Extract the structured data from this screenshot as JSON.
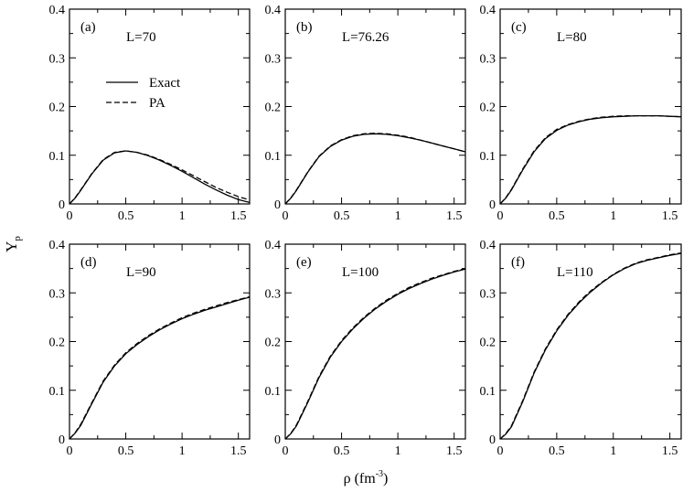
{
  "figure": {
    "xlabel": "ρ (fm",
    "xlabel_sup": "-3",
    "xlabel_close": ")",
    "ylabel": "Y",
    "ylabel_sub": "p"
  },
  "chart_data": [
    {
      "type": "line",
      "panel": "(a)",
      "annotation": "L=70",
      "xlim": [
        0,
        1.6
      ],
      "ylim": [
        0,
        0.4
      ],
      "xticks": [
        "0",
        "0.5",
        "1",
        "1.5"
      ],
      "xtick_values": [
        0,
        0.5,
        1,
        1.5
      ],
      "yticks": [
        "0",
        "0.1",
        "0.2",
        "0.3",
        "0.4"
      ],
      "ytick_values": [
        0,
        0.1,
        0.2,
        0.3,
        0.4
      ],
      "legend": {
        "placement": "upper-left",
        "entries": [
          {
            "name": "Exact",
            "style": "solid"
          },
          {
            "name": "PA",
            "style": "dashed"
          }
        ]
      },
      "series": [
        {
          "name": "Exact",
          "style": "solid",
          "x": [
            0,
            0.05,
            0.1,
            0.2,
            0.3,
            0.4,
            0.5,
            0.6,
            0.7,
            0.8,
            0.9,
            1.0,
            1.1,
            1.2,
            1.3,
            1.4,
            1.5,
            1.6
          ],
          "y": [
            0,
            0.012,
            0.028,
            0.062,
            0.09,
            0.105,
            0.109,
            0.106,
            0.099,
            0.09,
            0.079,
            0.067,
            0.054,
            0.041,
            0.029,
            0.018,
            0.009,
            0.003
          ]
        },
        {
          "name": "PA",
          "style": "dashed",
          "x": [
            0,
            0.05,
            0.1,
            0.2,
            0.3,
            0.4,
            0.5,
            0.6,
            0.7,
            0.8,
            0.9,
            1.0,
            1.1,
            1.2,
            1.3,
            1.4,
            1.5,
            1.6
          ],
          "y": [
            0,
            0.013,
            0.029,
            0.063,
            0.091,
            0.106,
            0.109,
            0.106,
            0.1,
            0.091,
            0.081,
            0.07,
            0.058,
            0.046,
            0.034,
            0.024,
            0.015,
            0.008
          ]
        }
      ]
    },
    {
      "type": "line",
      "panel": "(b)",
      "annotation": "L=76.26",
      "xlim": [
        0,
        1.6
      ],
      "ylim": [
        0,
        0.4
      ],
      "xticks": [
        "0",
        "0.5",
        "1",
        "1.5"
      ],
      "xtick_values": [
        0,
        0.5,
        1,
        1.5
      ],
      "yticks": [
        "0",
        "0.1",
        "0.2",
        "0.3",
        "0.4"
      ],
      "ytick_values": [
        0,
        0.1,
        0.2,
        0.3,
        0.4
      ],
      "series": [
        {
          "name": "Exact",
          "style": "solid",
          "x": [
            0,
            0.05,
            0.1,
            0.2,
            0.3,
            0.4,
            0.5,
            0.6,
            0.7,
            0.8,
            0.9,
            1.0,
            1.1,
            1.2,
            1.3,
            1.4,
            1.5,
            1.6
          ],
          "y": [
            0,
            0.012,
            0.028,
            0.065,
            0.097,
            0.118,
            0.131,
            0.139,
            0.143,
            0.144,
            0.143,
            0.14,
            0.136,
            0.131,
            0.125,
            0.119,
            0.113,
            0.107
          ]
        },
        {
          "name": "PA",
          "style": "dashed",
          "x": [
            0,
            0.05,
            0.1,
            0.2,
            0.3,
            0.4,
            0.5,
            0.6,
            0.7,
            0.8,
            0.9,
            1.0,
            1.1,
            1.2,
            1.3,
            1.4,
            1.5,
            1.6
          ],
          "y": [
            0,
            0.013,
            0.029,
            0.066,
            0.098,
            0.119,
            0.132,
            0.14,
            0.144,
            0.145,
            0.144,
            0.141,
            0.137,
            0.131,
            0.125,
            0.119,
            0.113,
            0.107
          ]
        }
      ]
    },
    {
      "type": "line",
      "panel": "(c)",
      "annotation": "L=80",
      "xlim": [
        0,
        1.6
      ],
      "ylim": [
        0,
        0.4
      ],
      "xticks": [
        "0",
        "0.5",
        "1",
        "1.5"
      ],
      "xtick_values": [
        0,
        0.5,
        1,
        1.5
      ],
      "yticks": [
        "0",
        "0.1",
        "0.2",
        "0.3",
        "0.4"
      ],
      "ytick_values": [
        0,
        0.1,
        0.2,
        0.3,
        0.4
      ],
      "series": [
        {
          "name": "Exact",
          "style": "solid",
          "x": [
            0,
            0.05,
            0.1,
            0.2,
            0.3,
            0.4,
            0.5,
            0.6,
            0.7,
            0.8,
            0.9,
            1.0,
            1.1,
            1.2,
            1.3,
            1.4,
            1.5,
            1.6
          ],
          "y": [
            0,
            0.012,
            0.029,
            0.07,
            0.107,
            0.134,
            0.151,
            0.162,
            0.169,
            0.174,
            0.177,
            0.179,
            0.18,
            0.181,
            0.181,
            0.181,
            0.18,
            0.179
          ]
        },
        {
          "name": "PA",
          "style": "dashed",
          "x": [
            0,
            0.05,
            0.1,
            0.2,
            0.3,
            0.4,
            0.5,
            0.6,
            0.7,
            0.8,
            0.9,
            1.0,
            1.1,
            1.2,
            1.3,
            1.4,
            1.5,
            1.6
          ],
          "y": [
            0,
            0.013,
            0.03,
            0.072,
            0.109,
            0.136,
            0.153,
            0.163,
            0.17,
            0.175,
            0.178,
            0.18,
            0.181,
            0.181,
            0.181,
            0.181,
            0.18,
            0.179
          ]
        }
      ]
    },
    {
      "type": "line",
      "panel": "(d)",
      "annotation": "L=90",
      "xlim": [
        0,
        1.6
      ],
      "ylim": [
        0,
        0.4
      ],
      "xticks": [
        "0",
        "0.5",
        "1",
        "1.5"
      ],
      "xtick_values": [
        0,
        0.5,
        1,
        1.5
      ],
      "yticks": [
        "0",
        "0.1",
        "0.2",
        "0.3",
        "0.4"
      ],
      "ytick_values": [
        0,
        0.1,
        0.2,
        0.3,
        0.4
      ],
      "series": [
        {
          "name": "Exact",
          "style": "solid",
          "x": [
            0,
            0.05,
            0.1,
            0.2,
            0.3,
            0.4,
            0.5,
            0.6,
            0.7,
            0.8,
            0.9,
            1.0,
            1.1,
            1.2,
            1.3,
            1.4,
            1.5,
            1.6
          ],
          "y": [
            0,
            0.012,
            0.028,
            0.073,
            0.117,
            0.15,
            0.175,
            0.194,
            0.21,
            0.224,
            0.236,
            0.247,
            0.256,
            0.264,
            0.271,
            0.278,
            0.285,
            0.291
          ]
        },
        {
          "name": "PA",
          "style": "dashed",
          "x": [
            0,
            0.05,
            0.1,
            0.2,
            0.3,
            0.4,
            0.5,
            0.6,
            0.7,
            0.8,
            0.9,
            1.0,
            1.1,
            1.2,
            1.3,
            1.4,
            1.5,
            1.6
          ],
          "y": [
            0,
            0.013,
            0.03,
            0.075,
            0.119,
            0.152,
            0.177,
            0.196,
            0.212,
            0.226,
            0.238,
            0.249,
            0.258,
            0.266,
            0.273,
            0.28,
            0.286,
            0.292
          ]
        }
      ]
    },
    {
      "type": "line",
      "panel": "(e)",
      "annotation": "L=100",
      "xlim": [
        0,
        1.6
      ],
      "ylim": [
        0,
        0.4
      ],
      "xticks": [
        "0",
        "0.5",
        "1",
        "1.5"
      ],
      "xtick_values": [
        0,
        0.5,
        1,
        1.5
      ],
      "yticks": [
        "0",
        "0.1",
        "0.2",
        "0.3",
        "0.4"
      ],
      "ytick_values": [
        0,
        0.1,
        0.2,
        0.3,
        0.4
      ],
      "series": [
        {
          "name": "Exact",
          "style": "solid",
          "x": [
            0,
            0.05,
            0.1,
            0.2,
            0.3,
            0.4,
            0.5,
            0.6,
            0.7,
            0.8,
            0.9,
            1.0,
            1.1,
            1.2,
            1.3,
            1.4,
            1.5,
            1.6
          ],
          "y": [
            0,
            0.011,
            0.027,
            0.075,
            0.126,
            0.168,
            0.2,
            0.226,
            0.248,
            0.267,
            0.283,
            0.297,
            0.309,
            0.319,
            0.328,
            0.336,
            0.343,
            0.349
          ]
        },
        {
          "name": "PA",
          "style": "dashed",
          "x": [
            0,
            0.05,
            0.1,
            0.2,
            0.3,
            0.4,
            0.5,
            0.6,
            0.7,
            0.8,
            0.9,
            1.0,
            1.1,
            1.2,
            1.3,
            1.4,
            1.5,
            1.6
          ],
          "y": [
            0,
            0.012,
            0.029,
            0.077,
            0.128,
            0.17,
            0.202,
            0.228,
            0.25,
            0.269,
            0.285,
            0.299,
            0.311,
            0.321,
            0.33,
            0.337,
            0.344,
            0.35
          ]
        }
      ]
    },
    {
      "type": "line",
      "panel": "(f)",
      "annotation": "L=110",
      "xlim": [
        0,
        1.6
      ],
      "ylim": [
        0,
        0.4
      ],
      "xticks": [
        "0",
        "0.5",
        "1",
        "1.5"
      ],
      "xtick_values": [
        0,
        0.5,
        1,
        1.5
      ],
      "yticks": [
        "0",
        "0.1",
        "0.2",
        "0.3",
        "0.4"
      ],
      "ytick_values": [
        0,
        0.1,
        0.2,
        0.3,
        0.4
      ],
      "series": [
        {
          "name": "Exact",
          "style": "solid",
          "x": [
            0,
            0.05,
            0.1,
            0.2,
            0.3,
            0.4,
            0.5,
            0.6,
            0.7,
            0.8,
            0.9,
            1.0,
            1.1,
            1.2,
            1.3,
            1.4,
            1.5,
            1.6
          ],
          "y": [
            0,
            0.01,
            0.025,
            0.077,
            0.135,
            0.183,
            0.222,
            0.254,
            0.28,
            0.302,
            0.321,
            0.337,
            0.35,
            0.36,
            0.367,
            0.372,
            0.377,
            0.381
          ]
        },
        {
          "name": "PA",
          "style": "dashed",
          "x": [
            0,
            0.05,
            0.1,
            0.2,
            0.3,
            0.4,
            0.5,
            0.6,
            0.7,
            0.8,
            0.9,
            1.0,
            1.1,
            1.2,
            1.3,
            1.4,
            1.5,
            1.6
          ],
          "y": [
            0,
            0.011,
            0.027,
            0.079,
            0.137,
            0.185,
            0.224,
            0.256,
            0.282,
            0.304,
            0.322,
            0.338,
            0.351,
            0.361,
            0.368,
            0.373,
            0.378,
            0.382
          ]
        }
      ]
    }
  ]
}
